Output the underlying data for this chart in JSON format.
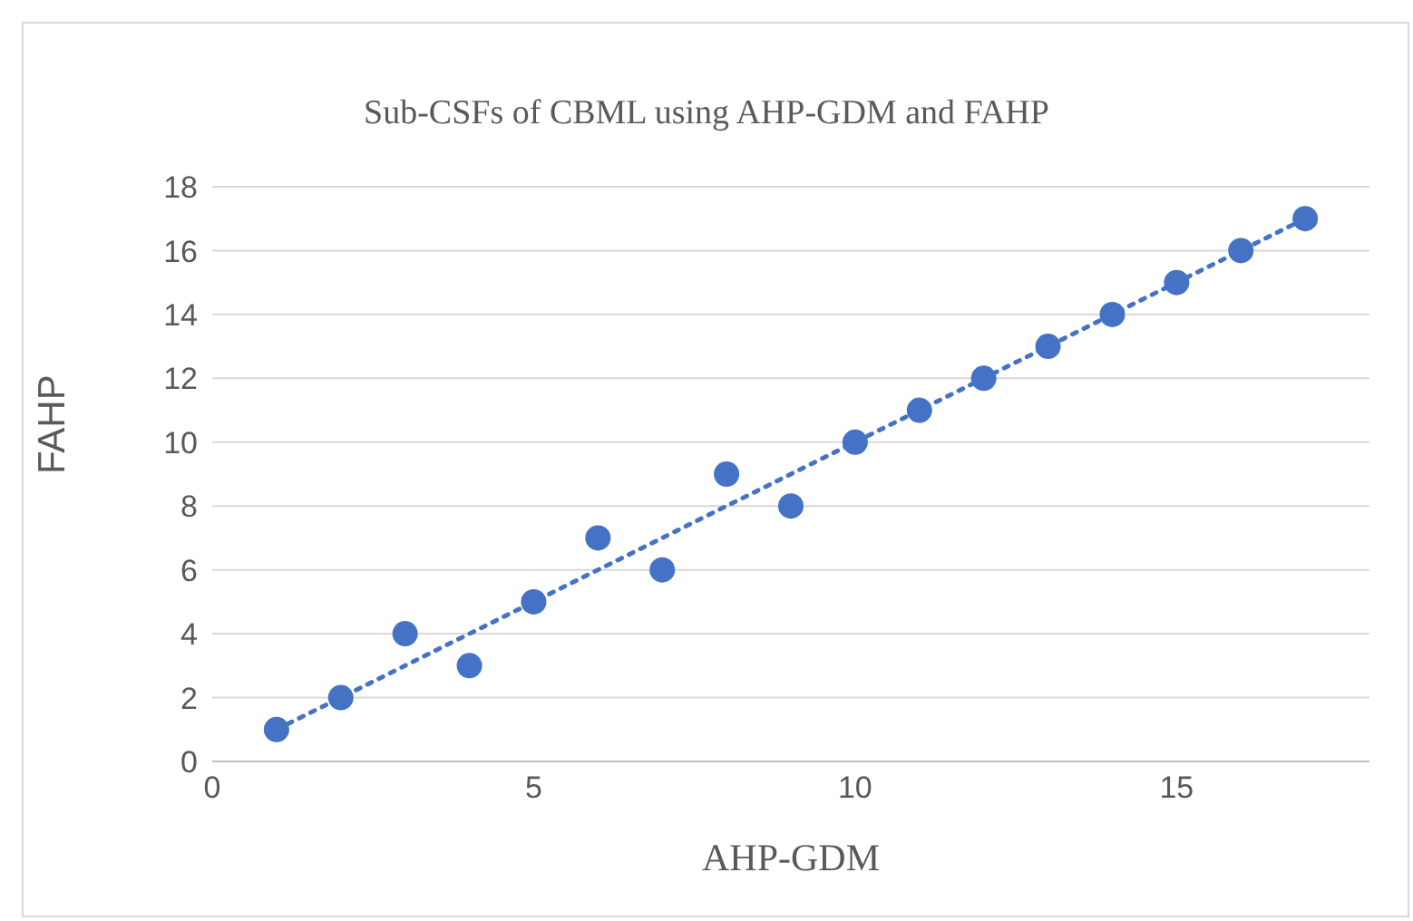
{
  "chart_data": {
    "type": "scatter",
    "title": "Sub-CSFs of CBML using AHP-GDM and FAHP",
    "xlabel": "AHP-GDM",
    "ylabel": "FAHP",
    "xlim": [
      0,
      18
    ],
    "xticks": [
      0,
      5,
      10,
      15
    ],
    "ylim": [
      0,
      18
    ],
    "yticks": [
      0,
      2,
      4,
      6,
      8,
      10,
      12,
      14,
      16,
      18
    ],
    "grid": "y",
    "marker": "circle",
    "series": [
      {
        "color": "#4472c4",
        "x": [
          1,
          2,
          3,
          4,
          5,
          6,
          7,
          8,
          9,
          10,
          11,
          12,
          13,
          14,
          15,
          16,
          17
        ],
        "values": [
          1,
          2,
          4,
          3,
          5,
          7,
          6,
          9,
          8,
          10,
          11,
          12,
          13,
          14,
          15,
          16,
          17
        ]
      },
      {
        "type": "line",
        "color": "#4472c4",
        "x": [
          1,
          17
        ],
        "values": [
          1,
          17
        ],
        "marker": "none",
        "line_style": "dotted"
      }
    ]
  }
}
